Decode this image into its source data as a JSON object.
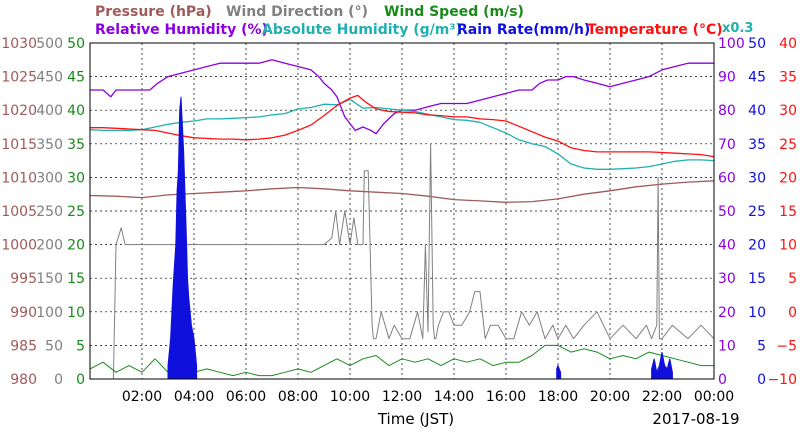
{
  "chart_data": {
    "type": "line",
    "legend_row1": [
      {
        "label": "Pressure (hPa)",
        "color": "#a05a5a"
      },
      {
        "label": "Wind Direction (°)",
        "color": "#808080"
      },
      {
        "label": "Wind Speed (m/s)",
        "color": "#1a8a1a"
      }
    ],
    "legend_row2": [
      {
        "label": "Relative Humidity (%)",
        "color": "#8b00e0"
      },
      {
        "label": "Absolute Humidity (g/m³)",
        "color": "#20b0b0"
      },
      {
        "label": "Rain Rate(mm/h)",
        "color": "#1010dd"
      },
      {
        "label": "Temperature (°C)",
        "color": "#ff1010"
      }
    ],
    "abs_humidity_scale_note": "x0.3",
    "xlabel": "Time (JST)",
    "date_label": "2017-08-19",
    "x_range_hours": [
      0,
      24
    ],
    "x_ticks": [
      "02:00",
      "04:00",
      "06:00",
      "08:00",
      "10:00",
      "12:00",
      "14:00",
      "16:00",
      "18:00",
      "20:00",
      "22:00",
      "00:00"
    ],
    "axes": {
      "pressure": {
        "color": "#a05a5a",
        "ticks": [
          "980",
          "985",
          "990",
          "995",
          "1000",
          "1005",
          "1010",
          "1015",
          "1020",
          "1025",
          "1030"
        ],
        "range": [
          980,
          1030
        ]
      },
      "wind_direction": {
        "color": "#808080",
        "ticks": [
          "0",
          "50",
          "100",
          "150",
          "200",
          "250",
          "300",
          "350",
          "400",
          "450",
          "500"
        ],
        "range": [
          0,
          500
        ]
      },
      "wind_speed": {
        "color": "#1a8a1a",
        "ticks": [
          "0",
          "5",
          "10",
          "15",
          "20",
          "25",
          "30",
          "35",
          "40",
          "45",
          "50"
        ],
        "range": [
          0,
          50
        ]
      },
      "relative_humidity": {
        "color": "#8b00e0",
        "ticks": [
          "0",
          "10",
          "20",
          "30",
          "40",
          "50",
          "60",
          "70",
          "80",
          "90",
          "100"
        ],
        "range": [
          0,
          100
        ]
      },
      "rain_rate": {
        "color": "#1010dd",
        "ticks": [
          "0",
          "5",
          "10",
          "15",
          "20",
          "25",
          "30",
          "35",
          "40",
          "45",
          "50"
        ],
        "range": [
          0,
          50
        ]
      },
      "temperature": {
        "color": "#ff1010",
        "ticks": [
          "−10",
          "−5",
          "0",
          "5",
          "10",
          "15",
          "20",
          "25",
          "30",
          "35",
          "40"
        ],
        "range": [
          -10,
          40
        ]
      }
    },
    "series": [
      {
        "name": "Pressure (hPa)",
        "color": "#a05a5a",
        "axis": "pressure",
        "x": [
          0,
          1,
          2,
          3,
          4,
          5,
          6,
          7,
          8,
          9,
          10,
          11,
          12,
          13,
          14,
          15,
          16,
          17,
          18,
          19,
          20,
          21,
          22,
          23,
          24
        ],
        "y": [
          1007.3,
          1007.2,
          1007.0,
          1007.4,
          1007.6,
          1007.8,
          1008.0,
          1008.3,
          1008.5,
          1008.3,
          1008.0,
          1007.8,
          1007.6,
          1007.2,
          1006.7,
          1006.5,
          1006.3,
          1006.4,
          1006.8,
          1007.5,
          1008.0,
          1008.6,
          1009.0,
          1009.3,
          1009.5
        ]
      },
      {
        "name": "Wind Direction (°)",
        "color": "#808080",
        "axis": "wind_direction",
        "x": [
          0.9,
          1.0,
          1.2,
          1.35,
          1.6,
          2.0,
          3.0,
          4.0,
          5.0,
          6.0,
          7.0,
          8.0,
          9.0,
          9.3,
          9.45,
          9.6,
          9.8,
          10.0,
          10.15,
          10.3,
          10.5,
          10.55,
          10.7,
          10.85,
          10.9,
          11.0,
          11.2,
          11.5,
          11.7,
          12.0,
          12.3,
          12.6,
          12.8,
          12.9,
          13.0,
          13.1,
          13.2,
          13.25,
          13.3,
          13.4,
          13.6,
          13.8,
          14.0,
          14.3,
          14.6,
          14.8,
          15.0,
          15.2,
          15.4,
          15.7,
          16.0,
          16.3,
          16.6,
          16.9,
          17.2,
          17.5,
          17.8,
          18.0,
          18.3,
          18.6,
          19.0,
          19.5,
          20.0,
          20.5,
          21.0,
          21.4,
          21.6,
          21.8,
          21.85,
          21.9,
          22.0,
          22.4,
          23.0,
          23.5,
          24.0
        ],
        "y": [
          0,
          200,
          225,
          200,
          200,
          200,
          200,
          200,
          200,
          200,
          200,
          200,
          200,
          210,
          250,
          200,
          250,
          200,
          240,
          200,
          200,
          310,
          310,
          80,
          60,
          60,
          100,
          60,
          80,
          60,
          60,
          100,
          60,
          200,
          70,
          350,
          80,
          60,
          60,
          80,
          100,
          100,
          80,
          80,
          100,
          130,
          130,
          60,
          80,
          80,
          60,
          60,
          100,
          80,
          100,
          60,
          80,
          60,
          80,
          60,
          80,
          100,
          60,
          80,
          60,
          80,
          60,
          80,
          300,
          60,
          60,
          80,
          60,
          80,
          60
        ]
      },
      {
        "name": "Wind Speed (m/s)",
        "color": "#1a8a1a",
        "axis": "wind_speed",
        "x": [
          0,
          0.5,
          1,
          1.5,
          2,
          2.5,
          3,
          3.5,
          4,
          4.5,
          5,
          5.5,
          6,
          6.5,
          7,
          7.5,
          8,
          8.5,
          9,
          9.5,
          10,
          10.5,
          11,
          11.5,
          12,
          12.5,
          13,
          13.5,
          14,
          14.5,
          15,
          15.5,
          16,
          16.5,
          17,
          17.5,
          18,
          18.5,
          19,
          19.5,
          20,
          20.5,
          21,
          21.5,
          22,
          22.5,
          23,
          23.5,
          24
        ],
        "y": [
          1.5,
          2.5,
          1,
          2,
          1,
          3,
          1,
          2,
          1,
          1.5,
          1,
          0.5,
          1,
          0.5,
          0.5,
          1,
          1.5,
          1,
          2,
          3,
          2,
          3,
          3.5,
          2,
          3,
          2.5,
          3,
          2,
          3,
          2.5,
          3,
          2,
          2.5,
          2.5,
          3.5,
          5,
          5,
          4,
          4.5,
          4,
          3,
          3.5,
          3,
          4,
          3.5,
          3,
          2.5,
          2,
          2
        ]
      },
      {
        "name": "Relative Humidity (%)",
        "color": "#8b00e0",
        "axis": "relative_humidity",
        "x": [
          0,
          0.5,
          0.8,
          1,
          1.5,
          2,
          2.3,
          2.6,
          3,
          3.5,
          4,
          4.5,
          5,
          5.5,
          6,
          6.5,
          7,
          7.5,
          8,
          8.5,
          8.8,
          9,
          9.3,
          9.5,
          9.8,
          10,
          10.2,
          10.5,
          10.8,
          11,
          11.3,
          11.7,
          12,
          12.5,
          13,
          13.5,
          14,
          14.5,
          15,
          15.5,
          16,
          16.5,
          17,
          17.3,
          17.6,
          18,
          18.3,
          18.6,
          19,
          19.5,
          20,
          20.5,
          21,
          21.5,
          22,
          22.5,
          23,
          23.5,
          24
        ],
        "y": [
          86,
          86,
          84,
          86,
          86,
          86,
          86,
          88,
          90,
          91,
          92,
          93,
          94,
          94,
          94,
          94,
          95,
          94,
          93,
          92,
          90,
          88,
          86,
          84,
          78,
          76,
          74,
          75,
          74,
          73,
          76,
          79,
          80,
          80,
          81,
          82,
          82,
          82,
          83,
          84,
          85,
          86,
          86,
          88,
          89,
          89,
          90,
          90,
          89,
          88,
          87,
          88,
          89,
          90,
          92,
          93,
          94,
          94,
          94
        ]
      },
      {
        "name": "Absolute Humidity (g/m³)",
        "color": "#20b0b0",
        "axis": "temperature",
        "x": [
          0,
          0.5,
          1,
          1.5,
          2,
          2.5,
          3,
          3.5,
          4,
          4.5,
          5,
          5.5,
          6,
          6.5,
          7,
          7.5,
          8,
          8.5,
          9,
          9.5,
          10,
          10.5,
          11,
          11.5,
          12,
          12.5,
          13,
          13.5,
          14,
          14.5,
          15,
          15.5,
          16,
          16.5,
          17,
          17.5,
          18,
          18.5,
          19,
          19.5,
          20,
          20.5,
          21,
          21.5,
          22,
          22.5,
          23,
          23.5,
          24
        ],
        "y": [
          27.1,
          27.0,
          27.0,
          27.0,
          27.1,
          27.5,
          27.9,
          28.2,
          28.4,
          28.7,
          28.7,
          28.8,
          28.9,
          29.0,
          29.3,
          29.5,
          30.2,
          30.4,
          30.9,
          30.8,
          31.6,
          30.3,
          30.4,
          30.2,
          30.0,
          29.8,
          29.4,
          29.0,
          28.6,
          28.5,
          28.2,
          27.4,
          26.6,
          25.6,
          25.0,
          24.6,
          23.5,
          22.0,
          21.4,
          21.2,
          21.2,
          21.3,
          21.4,
          21.6,
          22.0,
          22.4,
          22.6,
          22.6,
          22.5
        ]
      },
      {
        "name": "Temperature (°C)",
        "color": "#ff1010",
        "axis": "temperature",
        "x": [
          0,
          0.5,
          1,
          1.5,
          2,
          2.5,
          3,
          3.5,
          4,
          4.5,
          5,
          5.5,
          6,
          6.5,
          7,
          7.5,
          8,
          8.5,
          9,
          9.5,
          10,
          10.3,
          10.6,
          11,
          11.5,
          12,
          12.5,
          13,
          13.5,
          14,
          14.5,
          15,
          15.5,
          16,
          16.5,
          17,
          17.5,
          18,
          18.5,
          19,
          19.5,
          20,
          20.5,
          21,
          21.5,
          22,
          22.5,
          23,
          23.5,
          24
        ],
        "y": [
          27.4,
          27.4,
          27.3,
          27.2,
          27.1,
          27.0,
          26.6,
          26.2,
          25.9,
          25.8,
          25.7,
          25.7,
          25.6,
          25.7,
          25.9,
          26.3,
          27.0,
          27.8,
          29.2,
          30.7,
          31.8,
          32.2,
          31.2,
          30.2,
          29.8,
          29.7,
          29.6,
          29.3,
          29.2,
          29.0,
          29.0,
          28.7,
          28.6,
          28.4,
          27.6,
          26.8,
          26.0,
          25.4,
          24.4,
          24.0,
          23.8,
          23.8,
          23.8,
          23.8,
          23.8,
          23.7,
          23.6,
          23.5,
          23.4,
          23.1
        ]
      },
      {
        "name": "Rain Rate(mm/h)",
        "color": "#1010dd",
        "axis": "rain_rate",
        "x": [
          3.0,
          3.1,
          3.2,
          3.3,
          3.35,
          3.4,
          3.45,
          3.5,
          3.55,
          3.6,
          3.65,
          3.7,
          3.75,
          3.8,
          3.9,
          4.0,
          4.1,
          17.95,
          18.0,
          18.1,
          21.6,
          21.7,
          21.8,
          21.9,
          22.0,
          22.1,
          22.2,
          22.3,
          22.4
        ],
        "y": [
          2,
          6,
          14,
          20,
          28,
          31,
          40,
          42,
          38,
          34,
          28,
          22,
          15,
          12,
          8,
          6,
          2,
          1.5,
          2,
          1,
          1.5,
          3,
          1,
          2,
          4,
          2,
          1.5,
          3,
          1
        ]
      }
    ]
  }
}
